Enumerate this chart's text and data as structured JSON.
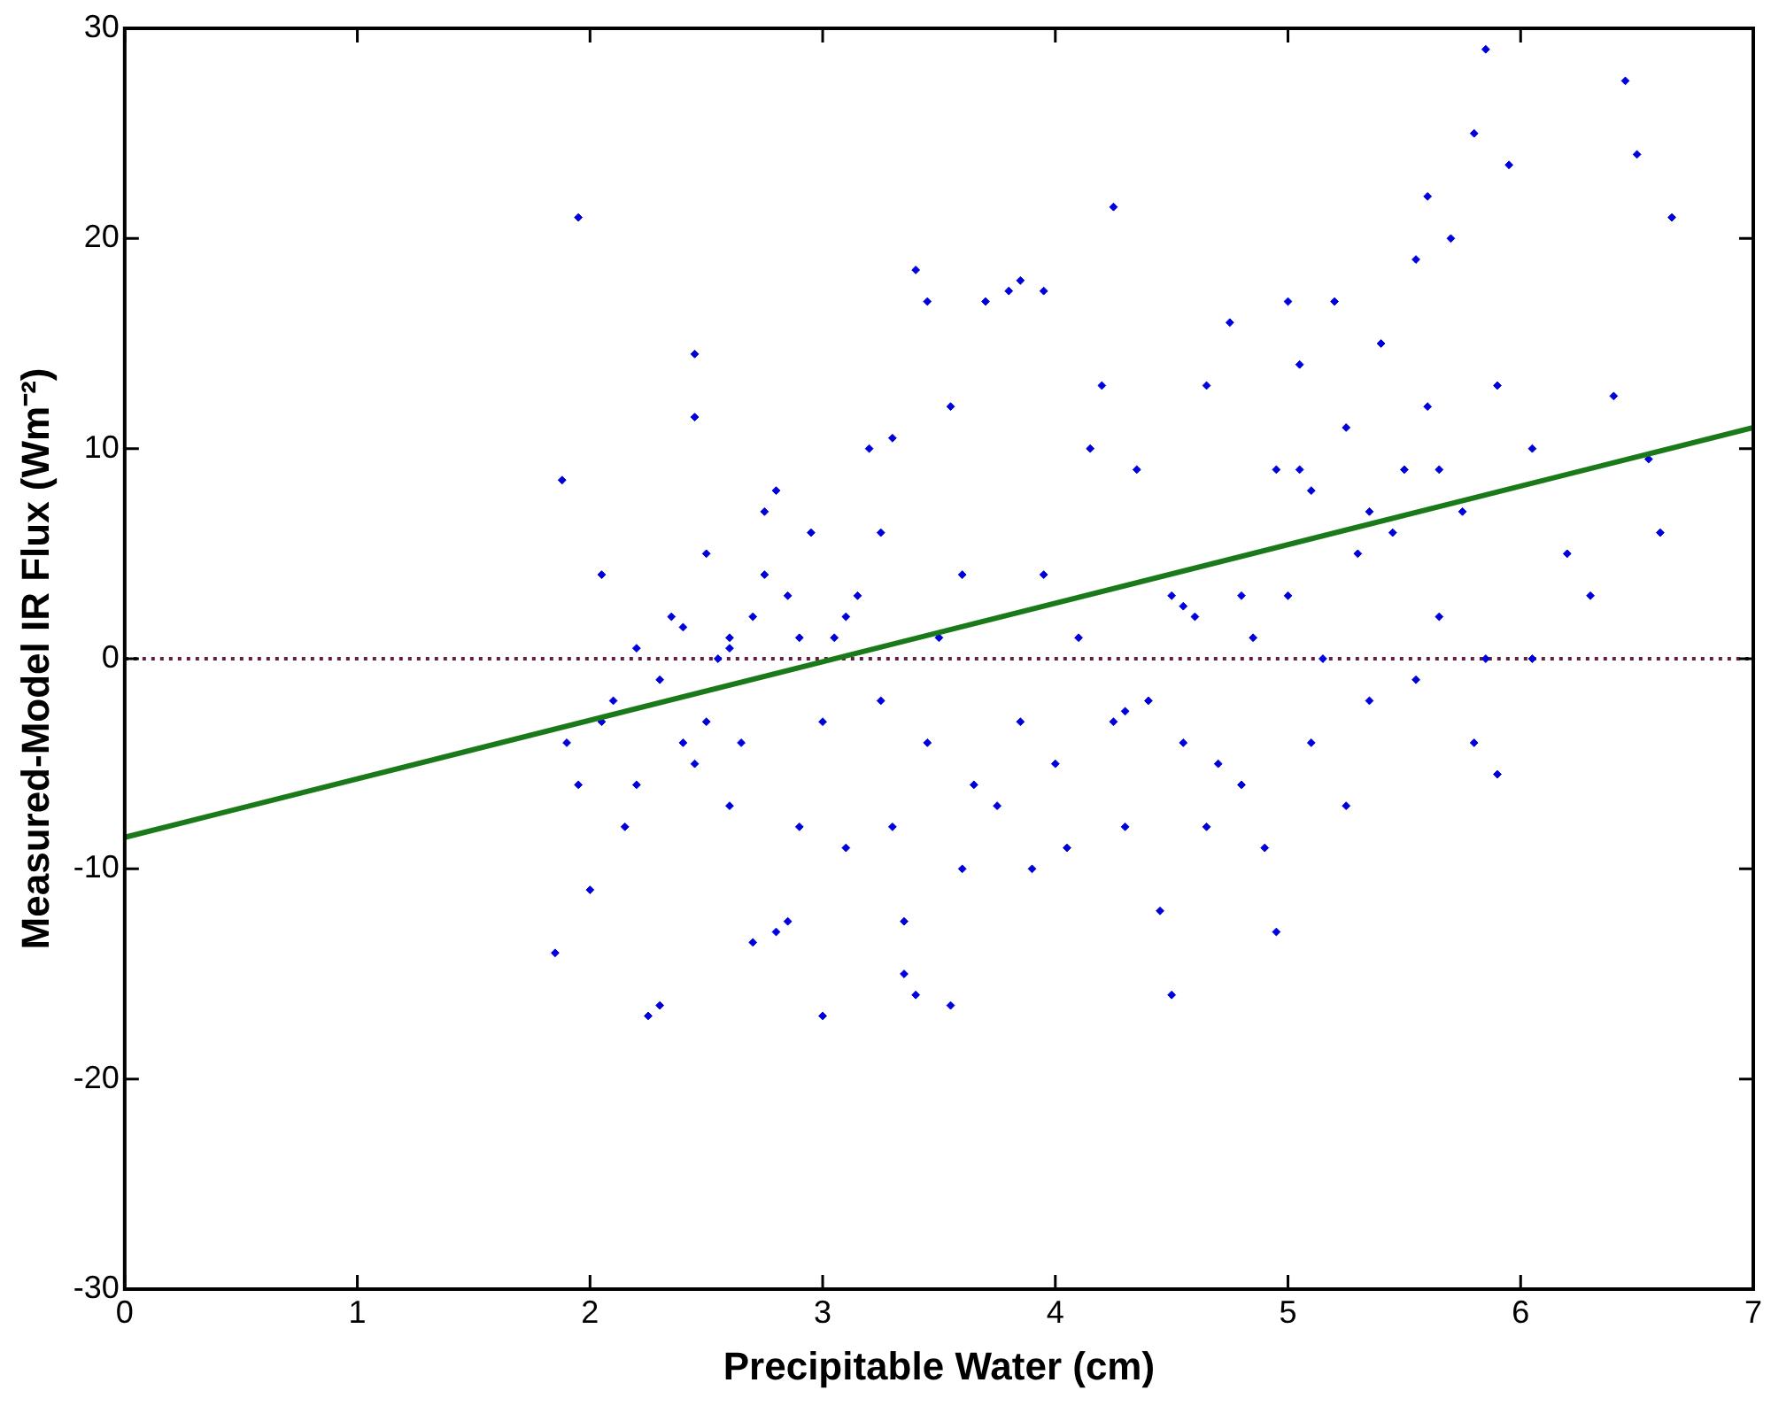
{
  "chart_data": {
    "type": "scatter",
    "xlabel": "Precipitable Water (cm)",
    "ylabel": "Measured-Model IR Flux (Wm⁻²)",
    "xlim": [
      0,
      7
    ],
    "xticks": [
      0,
      1,
      2,
      3,
      4,
      5,
      6,
      7
    ],
    "ylim": [
      -30,
      30
    ],
    "yticks": [
      -30,
      -20,
      -10,
      0,
      10,
      20,
      30
    ],
    "grid": false,
    "legend": false,
    "ref_lines": [
      {
        "axis": "y",
        "value": 0,
        "color": "#602040",
        "line_style": "dotted"
      }
    ],
    "series": [
      {
        "marker": "diamond",
        "color": "#0000dd",
        "x": [
          1.85,
          1.88,
          1.95,
          1.9,
          1.95,
          2.0,
          2.05,
          2.05,
          2.1,
          2.15,
          2.2,
          2.25,
          2.3,
          2.3,
          2.35,
          2.4,
          2.45,
          2.45,
          2.45,
          2.5,
          2.5,
          2.55,
          2.6,
          2.6,
          2.65,
          2.7,
          2.7,
          2.75,
          2.8,
          2.8,
          2.85,
          2.85,
          2.9,
          2.9,
          2.95,
          3.0,
          3.0,
          3.05,
          3.1,
          3.15,
          3.2,
          3.25,
          3.25,
          3.3,
          3.3,
          3.35,
          3.35,
          3.4,
          3.4,
          3.45,
          3.45,
          3.5,
          3.55,
          3.55,
          3.6,
          3.65,
          3.7,
          3.75,
          3.8,
          3.85,
          3.85,
          3.9,
          3.95,
          3.95,
          4.0,
          4.05,
          4.1,
          4.15,
          4.2,
          4.25,
          4.25,
          4.3,
          4.35,
          4.4,
          4.45,
          4.5,
          4.5,
          4.55,
          4.6,
          4.65,
          4.65,
          4.7,
          4.75,
          4.8,
          4.85,
          4.9,
          4.95,
          4.95,
          5.0,
          5.0,
          5.05,
          5.1,
          5.1,
          5.15,
          5.2,
          5.25,
          5.25,
          5.3,
          5.35,
          5.4,
          5.45,
          5.5,
          5.55,
          5.55,
          5.6,
          5.6,
          5.65,
          5.7,
          5.75,
          5.8,
          5.8,
          5.85,
          5.85,
          5.9,
          5.9,
          5.95,
          6.05,
          6.05,
          6.2,
          6.3,
          6.4,
          6.45,
          6.5,
          6.55,
          6.6,
          6.65,
          2.2,
          2.4,
          2.6,
          2.75,
          3.1,
          3.6,
          4.3,
          4.55,
          4.8,
          5.05,
          5.35,
          5.65
        ],
        "values": [
          -14,
          8.5,
          21,
          -4,
          -6,
          -11,
          4,
          -3,
          -2,
          -8,
          -6,
          -17,
          -16.5,
          -1,
          2,
          -4,
          14.5,
          11.5,
          -5,
          5,
          -3,
          0,
          1,
          -7,
          -4,
          -13.5,
          2,
          7,
          8,
          -13,
          -12.5,
          3,
          -8,
          1,
          6,
          -17,
          -3,
          1,
          -9,
          3,
          10,
          -2,
          6,
          -8,
          10.5,
          -12.5,
          -15,
          -16,
          18.5,
          17,
          -4,
          1,
          -16.5,
          12,
          -10,
          -6,
          17,
          -7,
          17.5,
          18,
          -3,
          -10,
          4,
          17.5,
          -5,
          -9,
          1,
          10,
          13,
          21.5,
          -3,
          -8,
          9,
          -2,
          -12,
          -16,
          3,
          -4,
          2,
          -8,
          13,
          -5,
          16,
          -6,
          1,
          -9,
          9,
          -13,
          17,
          3,
          14,
          -4,
          8,
          0,
          17,
          -7,
          11,
          5,
          -2,
          15,
          6,
          9,
          19,
          -1,
          22,
          12,
          2,
          20,
          7,
          25,
          -4,
          29,
          0,
          -5.5,
          13,
          23.5,
          0,
          10,
          5,
          3,
          12.5,
          27.5,
          24,
          9.5,
          6,
          21,
          0.5,
          1.5,
          0.5,
          4,
          2,
          4,
          -2.5,
          2.5,
          3,
          9,
          7,
          9
        ]
      },
      {
        "type": "line",
        "marker": "none",
        "color": "#1a7a1a",
        "x": [
          0,
          7
        ],
        "values": [
          -8.5,
          11
        ]
      }
    ]
  }
}
